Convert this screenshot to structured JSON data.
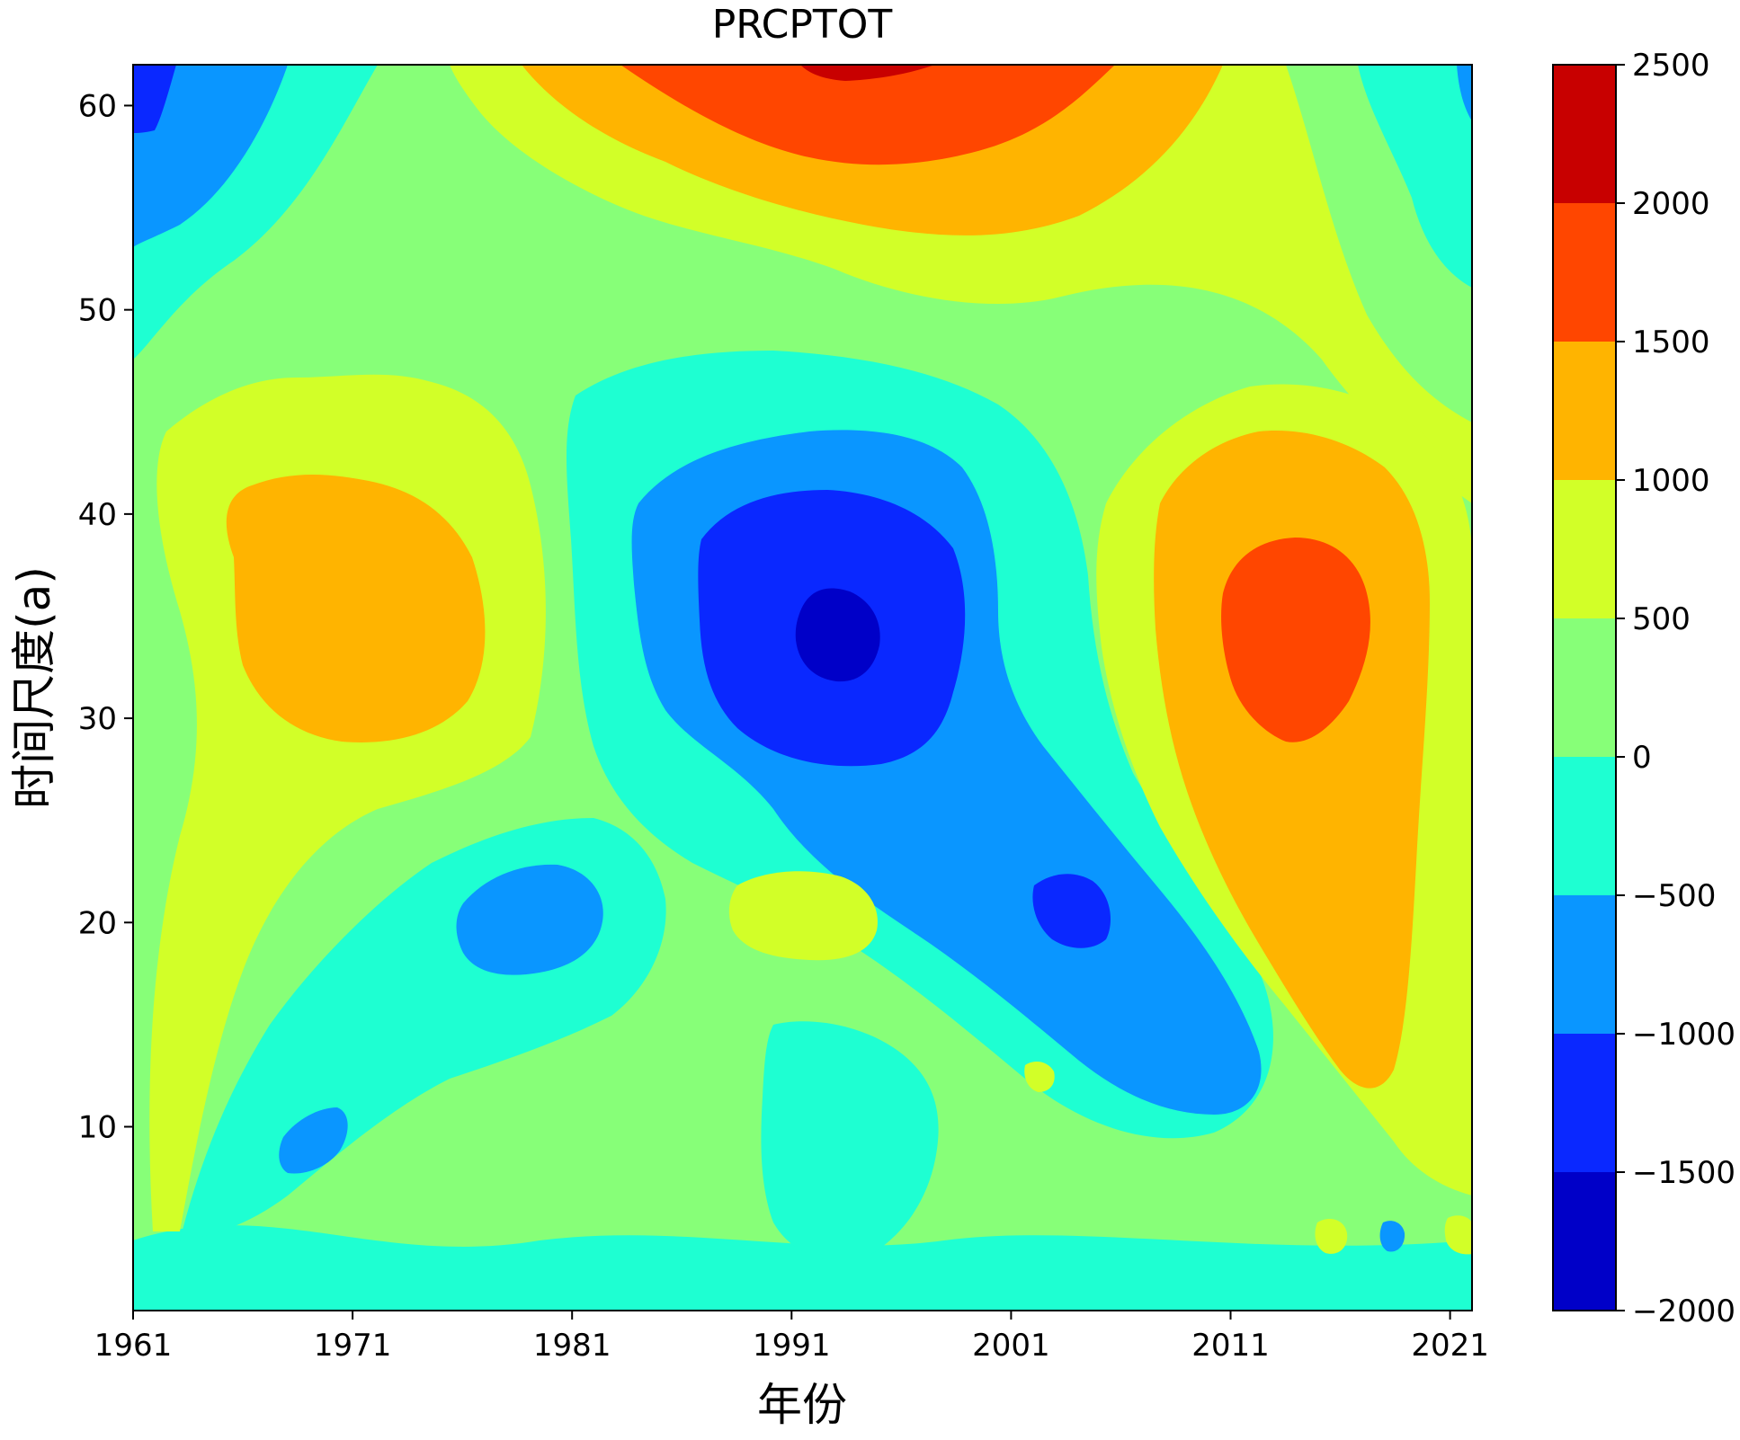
{
  "chart_data": {
    "type": "contourf",
    "title": "PRCPTOT",
    "xlabel": "年份",
    "ylabel": "时间尺度(a)",
    "xlim": [
      1961,
      2022
    ],
    "ylim": [
      1,
      62
    ],
    "x_ticks": [
      1961,
      1971,
      1981,
      1991,
      2001,
      2011,
      2021
    ],
    "y_ticks": [
      10,
      20,
      30,
      40,
      50,
      60
    ],
    "colorbar": {
      "levels": [
        -2000,
        -1500,
        -1000,
        -500,
        0,
        500,
        1000,
        1500,
        2000,
        2500
      ],
      "tick_labels": [
        "2500",
        "2000",
        "1500",
        "1000",
        "500",
        "0",
        "−500",
        "−1000",
        "−1500",
        "−2000"
      ],
      "colors": [
        "#0000c8",
        "#0a28ff",
        "#0a96ff",
        "#1effd2",
        "#87ff78",
        "#d2ff28",
        "#ffb400",
        "#ff4600",
        "#c80000"
      ]
    },
    "features": [
      {
        "kind": "peak",
        "center": [
          1994,
          60
        ],
        "peak_value": 2200,
        "description_level": "2000 to 2500 at core"
      },
      {
        "kind": "peak",
        "center": [
          1969,
          34
        ],
        "peak_value": 1300
      },
      {
        "kind": "peak",
        "center": [
          2013,
          34
        ],
        "peak_value": 1700
      },
      {
        "kind": "trough",
        "center": [
          1993,
          34
        ],
        "peak_value": -1800
      },
      {
        "kind": "trough",
        "center": [
          1962,
          60
        ],
        "peak_value": -1200
      },
      {
        "kind": "trough",
        "center": [
          2004,
          21
        ],
        "peak_value": -1200
      },
      {
        "kind": "trough",
        "center": [
          1979,
          20
        ],
        "peak_value": -800
      },
      {
        "kind": "peak",
        "center": [
          1990,
          21
        ],
        "peak_value": 700
      },
      {
        "kind": "trough",
        "center": [
          1969,
          9
        ],
        "peak_value": -800
      }
    ],
    "grid": false,
    "colorbar_position": "right"
  }
}
